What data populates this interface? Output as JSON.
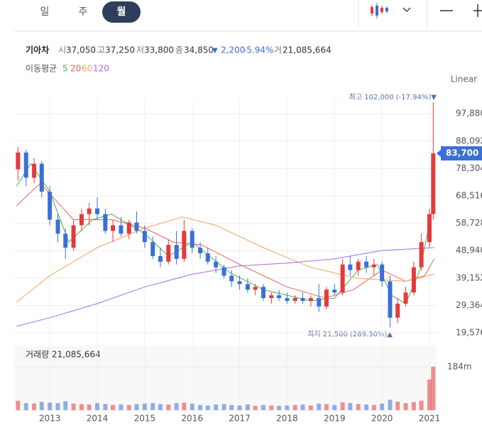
{
  "header": {
    "tabs": [
      "일",
      "주",
      "월"
    ]
  },
  "info": {
    "name": "기아차",
    "open_label": "시",
    "open": "37,050",
    "high_label": "고",
    "high": "37,250",
    "low_label": "저",
    "low": "33,800",
    "close_label": "종",
    "close": "34,850",
    "change_arrow": "▼",
    "change": "2,200",
    "change_pct": "-5.94%",
    "volume_label": "거",
    "volume": "21,085,664"
  },
  "chart_data": {
    "type": "candlestick",
    "scale_label": "Linear",
    "x": [
      2012.33,
      2012.5,
      2012.67,
      2012.83,
      2013.0,
      2013.17,
      2013.33,
      2013.5,
      2013.67,
      2013.83,
      2014.0,
      2014.17,
      2014.33,
      2014.5,
      2014.67,
      2014.83,
      2015.0,
      2015.17,
      2015.33,
      2015.5,
      2015.67,
      2015.83,
      2016.0,
      2016.17,
      2016.33,
      2016.5,
      2016.67,
      2016.83,
      2017.0,
      2017.17,
      2017.33,
      2017.5,
      2017.67,
      2017.83,
      2018.0,
      2018.17,
      2018.33,
      2018.5,
      2018.67,
      2018.83,
      2019.0,
      2019.17,
      2019.33,
      2019.5,
      2019.67,
      2019.83,
      2020.0,
      2020.17,
      2020.33,
      2020.5,
      2020.67,
      2020.83,
      2021.0,
      2021.08
    ],
    "open": [
      78000,
      84000,
      75000,
      80000,
      70000,
      60000,
      55000,
      50000,
      58000,
      62000,
      64000,
      62000,
      56000,
      58000,
      55000,
      59000,
      56000,
      52000,
      47000,
      45000,
      51000,
      46000,
      56000,
      50000,
      48000,
      45000,
      43000,
      40000,
      38000,
      37000,
      35000,
      36000,
      32000,
      33000,
      32000,
      31000,
      32000,
      31000,
      32000,
      29000,
      35000,
      34000,
      44000,
      42000,
      45000,
      43000,
      44000,
      38000,
      25000,
      30000,
      34000,
      43000,
      52000,
      62000
    ],
    "high": [
      86000,
      85000,
      82000,
      81000,
      72000,
      62000,
      57000,
      60000,
      64000,
      66000,
      68000,
      64000,
      60000,
      61000,
      60000,
      63000,
      58000,
      54000,
      50000,
      53000,
      56000,
      60000,
      57000,
      52000,
      50000,
      47000,
      44000,
      42000,
      40000,
      39000,
      37000,
      37000,
      34000,
      35000,
      34000,
      33000,
      34000,
      33000,
      37000,
      36000,
      37000,
      46000,
      47000,
      46000,
      47000,
      46000,
      45000,
      40000,
      32000,
      36000,
      45000,
      55000,
      64000,
      102000
    ],
    "low": [
      74000,
      72000,
      73000,
      68000,
      58000,
      52000,
      46000,
      49000,
      56000,
      58000,
      60000,
      55000,
      52000,
      54000,
      53000,
      55000,
      50000,
      46000,
      43000,
      44000,
      44000,
      45000,
      48000,
      46000,
      44000,
      41000,
      39000,
      36000,
      35000,
      34000,
      33000,
      31000,
      30000,
      31000,
      30000,
      30000,
      30000,
      29000,
      27000,
      28000,
      33000,
      33000,
      40000,
      40000,
      41000,
      40000,
      36000,
      21500,
      23000,
      29000,
      33000,
      42000,
      50000,
      60000
    ],
    "close": [
      84000,
      75000,
      80000,
      70000,
      60000,
      55000,
      50000,
      58000,
      62000,
      64000,
      62000,
      56000,
      58000,
      55000,
      59000,
      56000,
      52000,
      47000,
      45000,
      51000,
      46000,
      56000,
      50000,
      48000,
      45000,
      43000,
      40000,
      38000,
      37000,
      35000,
      36000,
      32000,
      33000,
      32000,
      31000,
      32000,
      31000,
      32000,
      29000,
      35000,
      34000,
      44000,
      42000,
      45000,
      43000,
      44000,
      38000,
      25000,
      30000,
      34000,
      43000,
      52000,
      62000,
      83700
    ],
    "up_color": "#e5393b",
    "down_color": "#3b6fd6",
    "xlim": [
      2012.25,
      2021.15
    ],
    "xticks": [
      2013,
      2014,
      2015,
      2016,
      2017,
      2018,
      2019,
      2020,
      2021
    ],
    "ylim": [
      16800,
      103000
    ],
    "yticks": [
      {
        "value": 19576,
        "label": "19,576"
      },
      {
        "value": 29364,
        "label": "29,364"
      },
      {
        "value": 39152,
        "label": "39,152"
      },
      {
        "value": 48940,
        "label": "48,940"
      },
      {
        "value": 58728,
        "label": "58,728"
      },
      {
        "value": 68516,
        "label": "68,516"
      },
      {
        "value": 78304,
        "label": "78,304"
      },
      {
        "value": 88092,
        "label": "88,092"
      },
      {
        "value": 97880,
        "label": "97,880"
      }
    ],
    "grid": true,
    "ma_label": "이동평균",
    "moving_averages": [
      {
        "name": "5",
        "color": "#4caf50",
        "x": [
          2012.3,
          2012.6,
          2013.0,
          2013.4,
          2013.9,
          2014.3,
          2015.0,
          2015.5,
          2016.0,
          2016.8,
          2017.5,
          2018.5,
          2019.0,
          2019.5,
          2019.9,
          2020.2,
          2020.5,
          2020.8,
          2021.1
        ],
        "values": [
          72000,
          80000,
          70000,
          52000,
          60000,
          62000,
          55000,
          47000,
          52000,
          41000,
          35000,
          31000,
          32000,
          42000,
          44000,
          33000,
          30000,
          42000,
          67000
        ]
      },
      {
        "name": "20",
        "color": "#e8605a",
        "x": [
          2012.3,
          2012.8,
          2013.5,
          2014.3,
          2015.0,
          2015.6,
          2016.2,
          2017.0,
          2018.0,
          2018.8,
          2019.4,
          2020.0,
          2020.5,
          2020.9,
          2021.1
        ],
        "values": [
          65000,
          73000,
          60000,
          60000,
          57000,
          52000,
          51000,
          44000,
          36000,
          32000,
          35000,
          42000,
          38000,
          40000,
          46000
        ]
      },
      {
        "name": "60",
        "color": "#f5a35c",
        "x": [
          2012.3,
          2013,
          2014,
          2015,
          2015.8,
          2016.5,
          2017.5,
          2018.5,
          2019.5,
          2020.5,
          2021.1
        ],
        "values": [
          30500,
          40000,
          50000,
          57000,
          61000,
          58000,
          50000,
          43000,
          39000,
          38000,
          40500
        ]
      },
      {
        "name": "120",
        "color": "#a66ce6",
        "x": [
          2012.3,
          2013,
          2014,
          2015,
          2016,
          2017,
          2018,
          2019,
          2019.5,
          2020,
          2021.1
        ],
        "values": [
          21900,
          25000,
          30000,
          36000,
          40500,
          43500,
          44500,
          46000,
          47500,
          49000,
          50000
        ]
      }
    ],
    "max_annotation": "최고 102,000 (-17.94%)▼",
    "min_annotation": "최저 21,500 (289.30%)▲",
    "last_price": {
      "value": 83700,
      "label": "83,700"
    },
    "volume": {
      "label": "거래량 21,085,664",
      "ylim": [
        0,
        265
      ],
      "yticks": [
        {
          "value": 184,
          "label": "184m"
        }
      ],
      "values": [
        40,
        30,
        28,
        35,
        32,
        30,
        38,
        28,
        26,
        24,
        30,
        26,
        22,
        24,
        22,
        26,
        28,
        30,
        26,
        24,
        30,
        32,
        28,
        22,
        20,
        24,
        26,
        22,
        20,
        24,
        18,
        22,
        20,
        18,
        20,
        22,
        24,
        20,
        28,
        26,
        22,
        34,
        30,
        26,
        24,
        22,
        28,
        44,
        36,
        30,
        34,
        40,
        130,
        184
      ]
    }
  }
}
